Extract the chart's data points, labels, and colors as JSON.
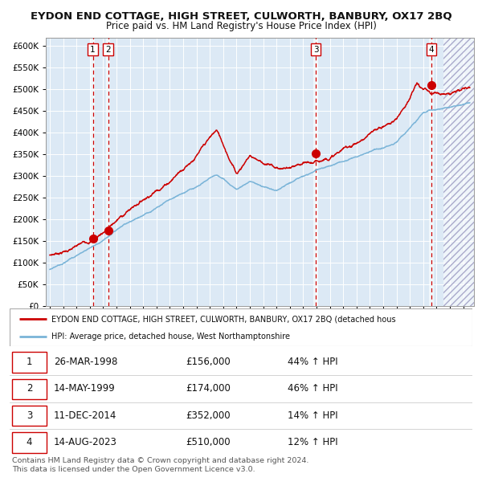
{
  "title": "EYDON END COTTAGE, HIGH STREET, CULWORTH, BANBURY, OX17 2BQ",
  "subtitle": "Price paid vs. HM Land Registry's House Price Index (HPI)",
  "background_color": "#ffffff",
  "plot_bg_color": "#dce9f5",
  "grid_color": "#ffffff",
  "hpi_line_color": "#7ab4d8",
  "price_line_color": "#cc0000",
  "marker_color": "#cc0000",
  "sale_dates": [
    1998.23,
    1999.37,
    2014.95,
    2023.62
  ],
  "sale_prices": [
    156000,
    174000,
    352000,
    510000
  ],
  "sale_labels": [
    "1",
    "2",
    "3",
    "4"
  ],
  "dashed_vline_color": "#cc0000",
  "ylim": [
    0,
    620000
  ],
  "xlim_start": 1994.7,
  "xlim_end": 2026.8,
  "yticks": [
    0,
    50000,
    100000,
    150000,
    200000,
    250000,
    300000,
    350000,
    400000,
    450000,
    500000,
    550000,
    600000
  ],
  "ytick_labels": [
    "£0",
    "£50K",
    "£100K",
    "£150K",
    "£200K",
    "£250K",
    "£300K",
    "£350K",
    "£400K",
    "£450K",
    "£500K",
    "£550K",
    "£600K"
  ],
  "legend_line1": "EYDON END COTTAGE, HIGH STREET, CULWORTH, BANBURY, OX17 2BQ (detached hous",
  "legend_line2": "HPI: Average price, detached house, West Northamptonshire",
  "table_data": [
    [
      "1",
      "26-MAR-1998",
      "£156,000",
      "44% ↑ HPI"
    ],
    [
      "2",
      "14-MAY-1999",
      "£174,000",
      "46% ↑ HPI"
    ],
    [
      "3",
      "11-DEC-2014",
      "£352,000",
      "14% ↑ HPI"
    ],
    [
      "4",
      "14-AUG-2023",
      "£510,000",
      "12% ↑ HPI"
    ]
  ],
  "footnote": "Contains HM Land Registry data © Crown copyright and database right 2024.\nThis data is licensed under the Open Government Licence v3.0.",
  "hatch_start": 2024.5
}
